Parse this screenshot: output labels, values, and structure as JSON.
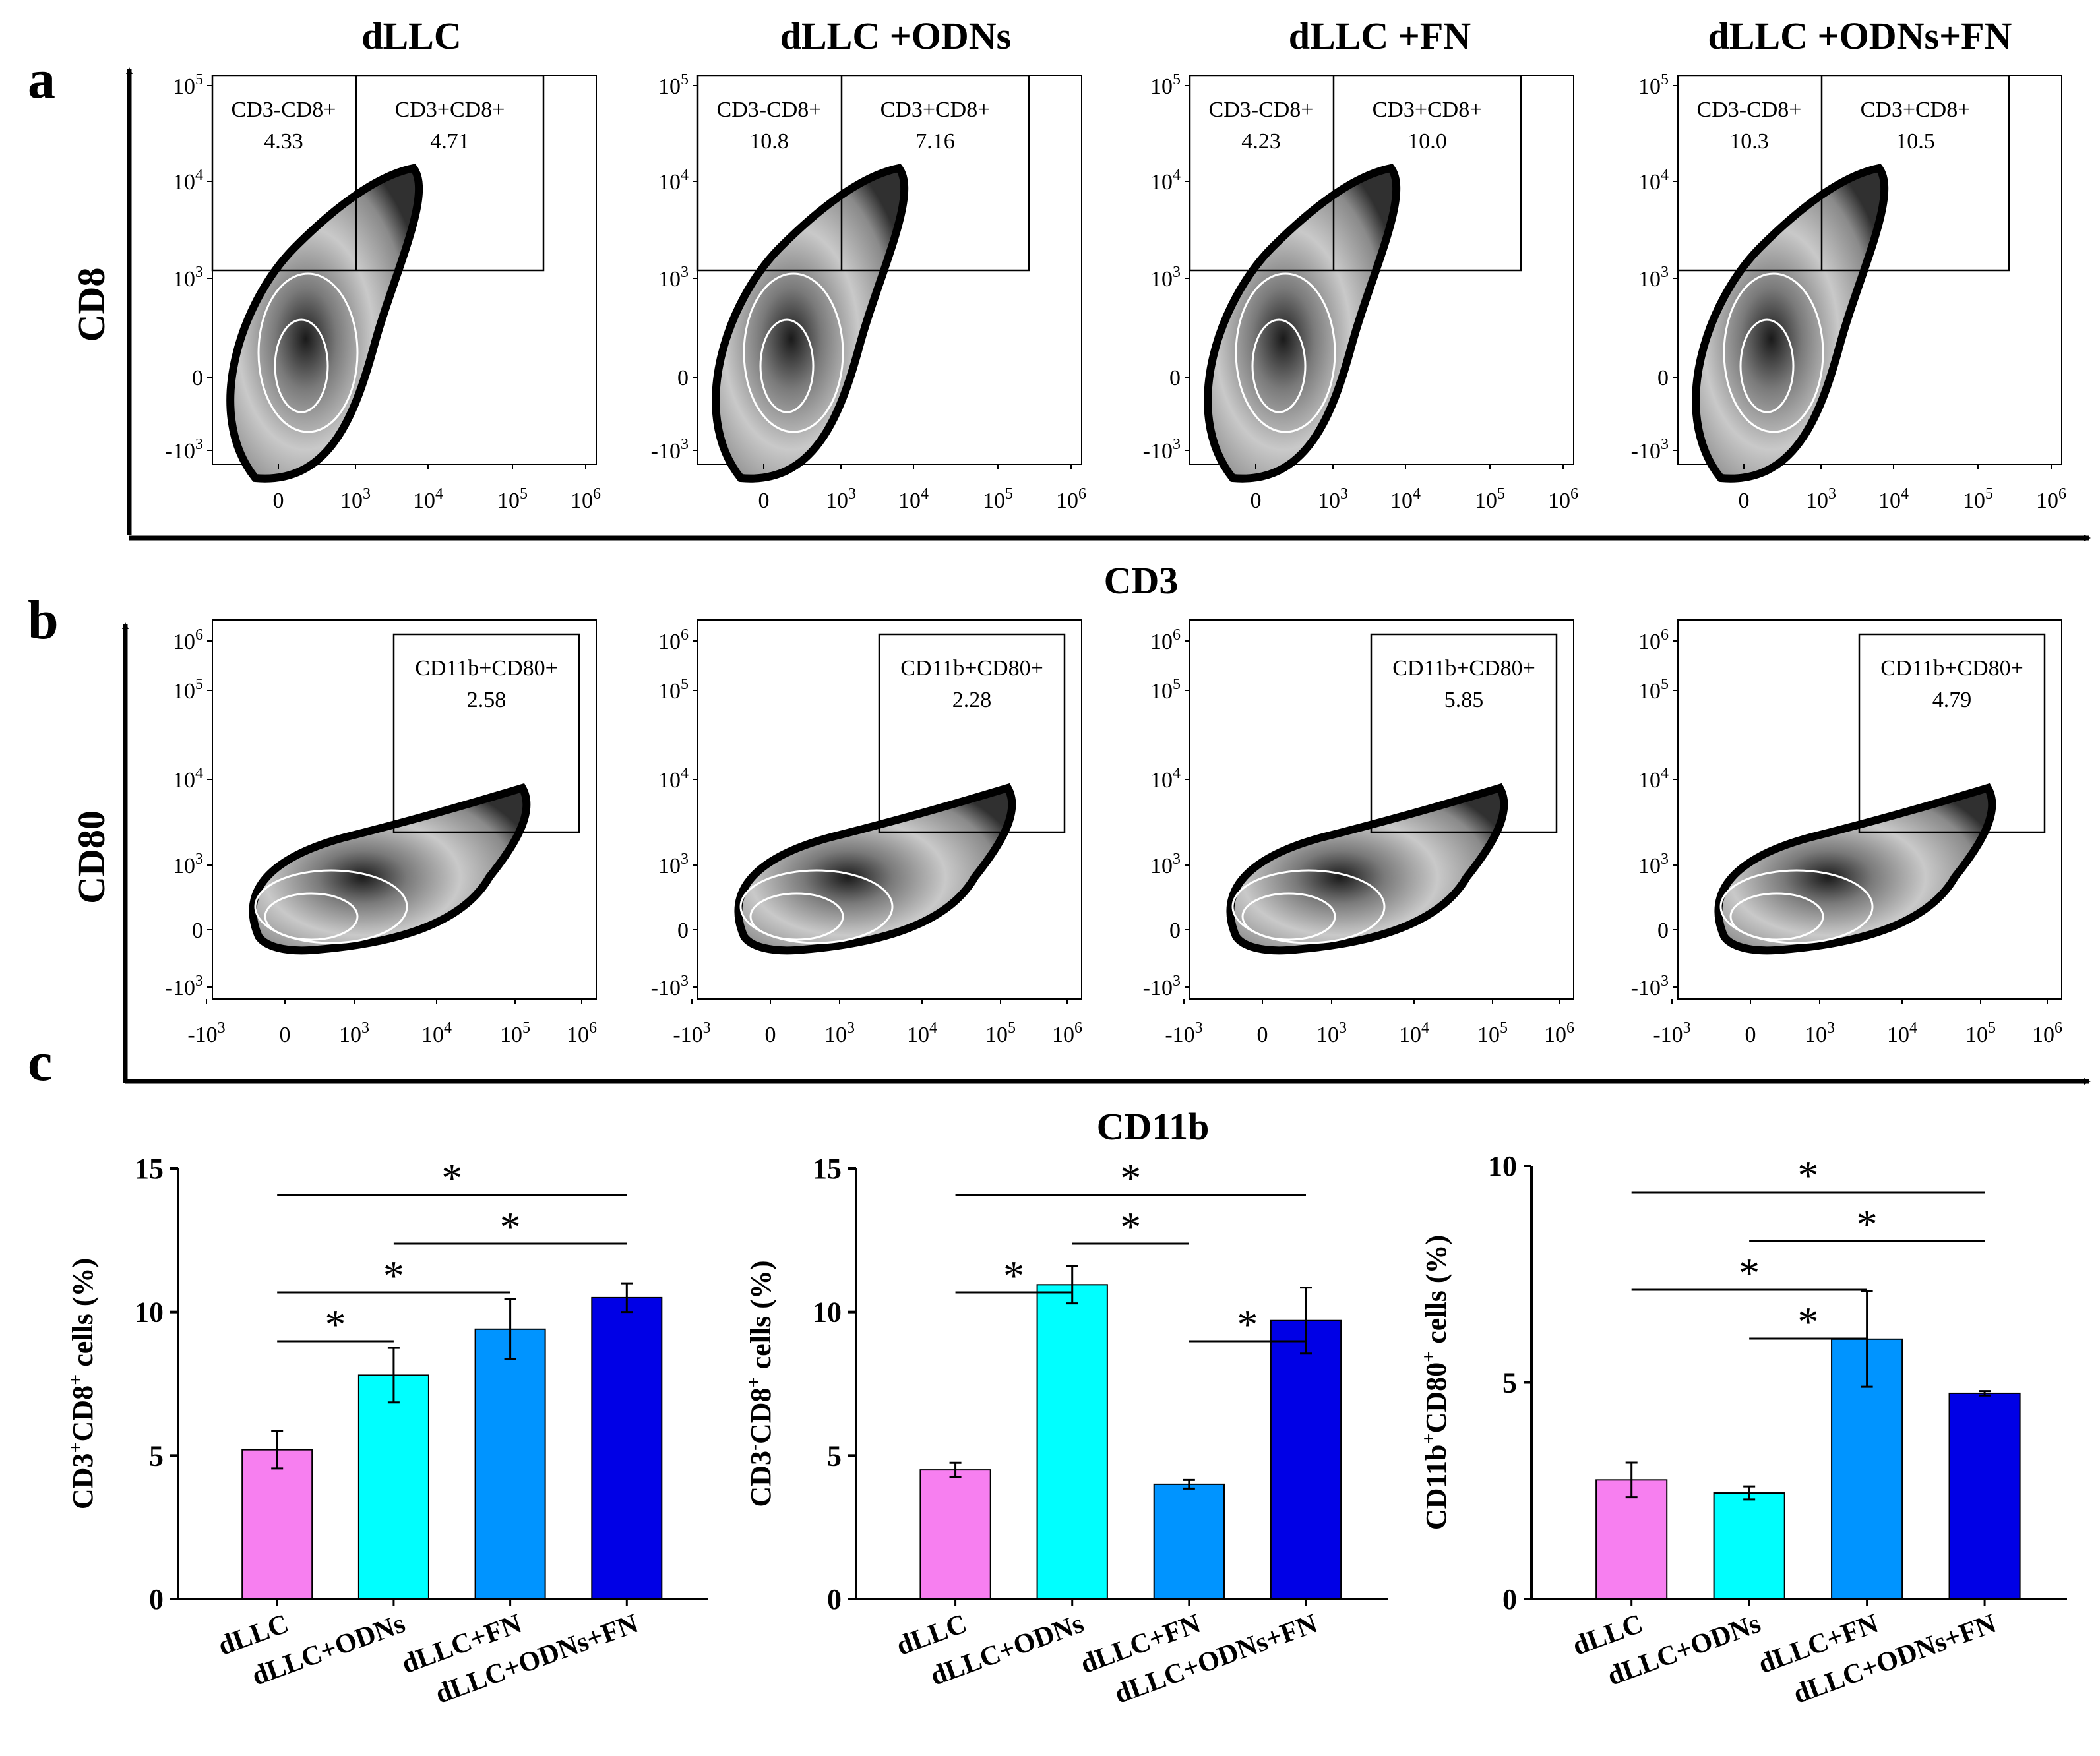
{
  "panel_letters": [
    "a",
    "b",
    "c"
  ],
  "conditions": [
    "dLLC",
    "dLLC +ODNs",
    "dLLC +FN",
    "dLLC +ODNs+FN"
  ],
  "panel_a": {
    "y_axis_title": "CD8",
    "x_axis_title": "CD3",
    "y_ticks": [
      [
        "10",
        "5"
      ],
      [
        "10",
        "4"
      ],
      [
        "10",
        "3"
      ],
      [
        "0",
        ""
      ],
      [
        "-10",
        "3"
      ]
    ],
    "x_ticks": [
      [
        "0",
        ""
      ],
      [
        "10",
        "3"
      ],
      [
        "10",
        "4"
      ],
      [
        "10",
        "5"
      ],
      [
        "10",
        "6"
      ]
    ],
    "plots": [
      {
        "gates": [
          {
            "label": "CD3-CD8+",
            "value": "4.33"
          },
          {
            "label": "CD3+CD8+",
            "value": "4.71"
          }
        ]
      },
      {
        "gates": [
          {
            "label": "CD3-CD8+",
            "value": "10.8"
          },
          {
            "label": "CD3+CD8+",
            "value": "7.16"
          }
        ]
      },
      {
        "gates": [
          {
            "label": "CD3-CD8+",
            "value": "4.23"
          },
          {
            "label": "CD3+CD8+",
            "value": "10.0"
          }
        ]
      },
      {
        "gates": [
          {
            "label": "CD3-CD8+",
            "value": "10.3"
          },
          {
            "label": "CD3+CD8+",
            "value": "10.5"
          }
        ]
      }
    ]
  },
  "panel_b": {
    "y_axis_title": "CD80",
    "x_axis_title": "CD11b",
    "y_ticks": [
      [
        "10",
        "6"
      ],
      [
        "10",
        "5"
      ],
      [
        "10",
        "4"
      ],
      [
        "10",
        "3"
      ],
      [
        "0",
        ""
      ],
      [
        "-10",
        "3"
      ]
    ],
    "x_ticks": [
      [
        "-10",
        "3"
      ],
      [
        "0",
        ""
      ],
      [
        "10",
        "3"
      ],
      [
        "10",
        "4"
      ],
      [
        "10",
        "5"
      ],
      [
        "10",
        "6"
      ]
    ],
    "plots": [
      {
        "gates": [
          {
            "label": "CD11b+CD80+",
            "value": "2.58"
          }
        ]
      },
      {
        "gates": [
          {
            "label": "CD11b+CD80+",
            "value": "2.28"
          }
        ]
      },
      {
        "gates": [
          {
            "label": "CD11b+CD80+",
            "value": "5.85"
          }
        ]
      },
      {
        "gates": [
          {
            "label": "CD11b+CD80+",
            "value": "4.79"
          }
        ]
      }
    ]
  },
  "colors": {
    "bars": [
      "#f77ff0",
      "#00ffff",
      "#0094ff",
      "#0000e6"
    ]
  },
  "chart_data": [
    {
      "type": "bar",
      "ylabel_parts": [
        [
          "CD3",
          ""
        ],
        [
          "+",
          "sup"
        ],
        [
          "CD8",
          ""
        ],
        [
          "+",
          "sup"
        ],
        [
          " cells (%)",
          ""
        ]
      ],
      "categories": [
        "dLLC",
        "dLLC+ODNs",
        "dLLC+FN",
        "dLLC+ODNs+FN"
      ],
      "values": [
        5.2,
        7.8,
        9.4,
        10.5
      ],
      "errors": [
        0.65,
        0.95,
        1.05,
        0.5
      ],
      "ylim": [
        0,
        15
      ],
      "yticks": [
        0,
        5,
        10,
        15
      ],
      "significance": [
        {
          "from": 0,
          "to": 3,
          "label": "*"
        },
        {
          "from": 1,
          "to": 3,
          "label": "*"
        },
        {
          "from": 0,
          "to": 2,
          "label": "*"
        },
        {
          "from": 0,
          "to": 1,
          "label": "*"
        }
      ]
    },
    {
      "type": "bar",
      "ylabel_parts": [
        [
          "CD3",
          ""
        ],
        [
          "-",
          "sup"
        ],
        [
          "CD8",
          ""
        ],
        [
          "+",
          "sup"
        ],
        [
          " cells (%)",
          ""
        ]
      ],
      "categories": [
        "dLLC",
        "dLLC+ODNs",
        "dLLC+FN",
        "dLLC+ODNs+FN"
      ],
      "values": [
        4.5,
        10.95,
        4.0,
        9.7
      ],
      "errors": [
        0.25,
        0.65,
        0.15,
        1.15
      ],
      "ylim": [
        0,
        15
      ],
      "yticks": [
        0,
        5,
        10,
        15
      ],
      "significance": [
        {
          "from": 0,
          "to": 3,
          "label": "*"
        },
        {
          "from": 1,
          "to": 2,
          "label": "*"
        },
        {
          "from": 0,
          "to": 1,
          "label": "*"
        },
        {
          "from": 2,
          "to": 3,
          "label": "*"
        }
      ]
    },
    {
      "type": "bar",
      "ylabel_parts": [
        [
          "CD11b",
          ""
        ],
        [
          "+",
          "sup"
        ],
        [
          "CD80",
          ""
        ],
        [
          "+",
          "sup"
        ],
        [
          " cells (%)",
          ""
        ]
      ],
      "categories": [
        "dLLC",
        "dLLC+ODNs",
        "dLLC+FN",
        "dLLC+ODNs+FN"
      ],
      "values": [
        2.75,
        2.45,
        6.0,
        4.75
      ],
      "errors": [
        0.4,
        0.15,
        1.1,
        0.05
      ],
      "ylim": [
        0,
        10
      ],
      "yticks": [
        0,
        5,
        10
      ],
      "significance": [
        {
          "from": 0,
          "to": 3,
          "label": "*"
        },
        {
          "from": 1,
          "to": 3,
          "label": "*"
        },
        {
          "from": 0,
          "to": 2,
          "label": "*"
        },
        {
          "from": 1,
          "to": 2,
          "label": "*"
        }
      ]
    }
  ]
}
